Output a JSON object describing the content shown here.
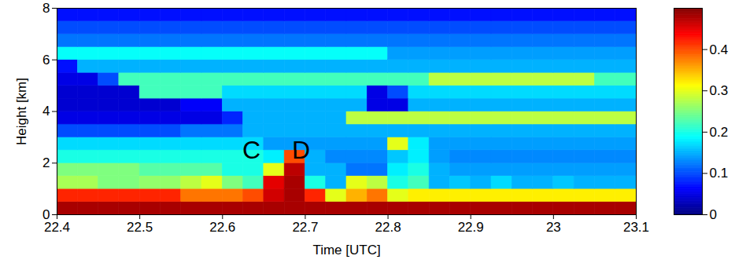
{
  "chart_data": {
    "type": "heatmap",
    "x_label": "Time [UTC]",
    "y_label": "Height [km]",
    "xlim": [
      22.4,
      23.1
    ],
    "xticks": [
      22.4,
      22.5,
      22.6,
      22.7,
      22.8,
      22.9,
      23,
      23.1
    ],
    "ylim": [
      0,
      8
    ],
    "yticks": [
      0,
      2,
      4,
      6,
      8
    ],
    "time_bins": [
      22.4,
      22.425,
      22.45,
      22.475,
      22.5,
      22.525,
      22.55,
      22.575,
      22.6,
      22.625,
      22.65,
      22.675,
      22.7,
      22.725,
      22.75,
      22.775,
      22.8,
      22.825,
      22.85,
      22.875,
      22.9,
      22.925,
      22.95,
      22.975,
      23.0,
      23.025,
      23.05,
      23.075,
      23.1
    ],
    "height_bins": [
      0,
      0.5,
      1,
      1.5,
      2,
      2.5,
      3,
      3.5,
      4,
      4.5,
      5,
      5.5,
      6,
      6.5,
      7,
      7.5,
      8
    ],
    "cells": [
      [
        0.48,
        0.48,
        0.48,
        0.48,
        0.48,
        0.48,
        0.48,
        0.48,
        0.48,
        0.48,
        0.48,
        0.48,
        0.48,
        0.48,
        0.48,
        0.48,
        0.48,
        0.48,
        0.48,
        0.48,
        0.48,
        0.48,
        0.48,
        0.48,
        0.48,
        0.48,
        0.48,
        0.48
      ],
      [
        0.42,
        0.42,
        0.42,
        0.42,
        0.42,
        0.42,
        0.38,
        0.38,
        0.38,
        0.4,
        0.46,
        0.48,
        0.42,
        0.3,
        0.35,
        0.38,
        0.3,
        0.32,
        0.32,
        0.32,
        0.32,
        0.32,
        0.32,
        0.32,
        0.32,
        0.32,
        0.32,
        0.32
      ],
      [
        0.27,
        0.27,
        0.25,
        0.25,
        0.26,
        0.26,
        0.28,
        0.3,
        0.25,
        0.22,
        0.45,
        0.48,
        0.2,
        0.15,
        0.3,
        0.28,
        0.2,
        0.22,
        0.15,
        0.16,
        0.15,
        0.17,
        0.15,
        0.15,
        0.16,
        0.15,
        0.15,
        0.15
      ],
      [
        0.25,
        0.25,
        0.25,
        0.25,
        0.23,
        0.23,
        0.23,
        0.23,
        0.2,
        0.2,
        0.3,
        0.47,
        0.15,
        0.15,
        0.12,
        0.12,
        0.18,
        0.2,
        0.15,
        0.14,
        0.14,
        0.14,
        0.14,
        0.14,
        0.14,
        0.14,
        0.14,
        0.14
      ],
      [
        0.2,
        0.2,
        0.2,
        0.2,
        0.2,
        0.2,
        0.2,
        0.2,
        0.2,
        0.2,
        0.18,
        0.4,
        0.15,
        0.13,
        0.13,
        0.13,
        0.16,
        0.18,
        0.14,
        0.13,
        0.13,
        0.13,
        0.13,
        0.13,
        0.13,
        0.13,
        0.13,
        0.13
      ],
      [
        0.17,
        0.17,
        0.17,
        0.17,
        0.17,
        0.17,
        0.17,
        0.17,
        0.17,
        0.17,
        0.14,
        0.14,
        0.14,
        0.14,
        0.14,
        0.14,
        0.3,
        0.18,
        0.14,
        0.14,
        0.14,
        0.14,
        0.14,
        0.14,
        0.14,
        0.14,
        0.14,
        0.14
      ],
      [
        0.1,
        0.1,
        0.1,
        0.1,
        0.1,
        0.1,
        0.12,
        0.12,
        0.12,
        0.15,
        0.15,
        0.15,
        0.15,
        0.15,
        0.15,
        0.15,
        0.15,
        0.15,
        0.15,
        0.15,
        0.15,
        0.15,
        0.15,
        0.15,
        0.15,
        0.15,
        0.15,
        0.15
      ],
      [
        0.05,
        0.05,
        0.05,
        0.05,
        0.05,
        0.05,
        0.05,
        0.05,
        0.08,
        0.15,
        0.15,
        0.15,
        0.15,
        0.15,
        0.28,
        0.28,
        0.28,
        0.28,
        0.28,
        0.28,
        0.28,
        0.28,
        0.28,
        0.28,
        0.28,
        0.28,
        0.28,
        0.28
      ],
      [
        0.04,
        0.04,
        0.04,
        0.04,
        0.04,
        0.04,
        0.06,
        0.06,
        0.15,
        0.15,
        0.15,
        0.15,
        0.15,
        0.15,
        0.15,
        0.05,
        0.05,
        0.15,
        0.15,
        0.15,
        0.15,
        0.15,
        0.15,
        0.15,
        0.15,
        0.15,
        0.15,
        0.15
      ],
      [
        0.04,
        0.04,
        0.04,
        0.04,
        0.22,
        0.22,
        0.22,
        0.22,
        0.17,
        0.17,
        0.17,
        0.17,
        0.17,
        0.17,
        0.17,
        0.05,
        0.1,
        0.17,
        0.17,
        0.17,
        0.17,
        0.17,
        0.17,
        0.17,
        0.17,
        0.17,
        0.17,
        0.17
      ],
      [
        0.05,
        0.05,
        0.1,
        0.22,
        0.22,
        0.22,
        0.22,
        0.22,
        0.22,
        0.22,
        0.22,
        0.22,
        0.22,
        0.22,
        0.22,
        0.22,
        0.22,
        0.22,
        0.28,
        0.28,
        0.28,
        0.28,
        0.28,
        0.28,
        0.28,
        0.28,
        0.22,
        0.22
      ],
      [
        0.07,
        0.15,
        0.15,
        0.15,
        0.15,
        0.15,
        0.15,
        0.15,
        0.15,
        0.15,
        0.15,
        0.15,
        0.15,
        0.15,
        0.15,
        0.15,
        0.15,
        0.15,
        0.15,
        0.15,
        0.15,
        0.15,
        0.15,
        0.15,
        0.15,
        0.15,
        0.15,
        0.15
      ],
      [
        0.19,
        0.19,
        0.19,
        0.19,
        0.19,
        0.19,
        0.19,
        0.19,
        0.19,
        0.19,
        0.19,
        0.19,
        0.19,
        0.19,
        0.19,
        0.19,
        0.14,
        0.14,
        0.14,
        0.14,
        0.14,
        0.14,
        0.14,
        0.14,
        0.14,
        0.14,
        0.14,
        0.14
      ],
      [
        0.12,
        0.12,
        0.12,
        0.12,
        0.12,
        0.12,
        0.12,
        0.12,
        0.12,
        0.12,
        0.12,
        0.12,
        0.12,
        0.12,
        0.12,
        0.12,
        0.12,
        0.12,
        0.12,
        0.12,
        0.12,
        0.12,
        0.12,
        0.12,
        0.12,
        0.12,
        0.12,
        0.12
      ],
      [
        0.1,
        0.1,
        0.1,
        0.1,
        0.1,
        0.1,
        0.1,
        0.1,
        0.1,
        0.1,
        0.1,
        0.1,
        0.1,
        0.1,
        0.1,
        0.1,
        0.1,
        0.1,
        0.1,
        0.1,
        0.1,
        0.1,
        0.1,
        0.1,
        0.1,
        0.1,
        0.1,
        0.1
      ],
      [
        0.07,
        0.07,
        0.07,
        0.07,
        0.07,
        0.07,
        0.07,
        0.07,
        0.07,
        0.07,
        0.07,
        0.07,
        0.07,
        0.07,
        0.07,
        0.07,
        0.07,
        0.07,
        0.07,
        0.07,
        0.07,
        0.07,
        0.07,
        0.07,
        0.07,
        0.07,
        0.07,
        0.07
      ]
    ],
    "colorbar": {
      "lim": [
        0,
        0.5
      ],
      "ticks": [
        0,
        0.1,
        0.2,
        0.3,
        0.4
      ]
    },
    "annotations": [
      {
        "text": "C",
        "x": 22.635,
        "y": 2.5
      },
      {
        "text": "D",
        "x": 22.695,
        "y": 2.5
      }
    ]
  }
}
